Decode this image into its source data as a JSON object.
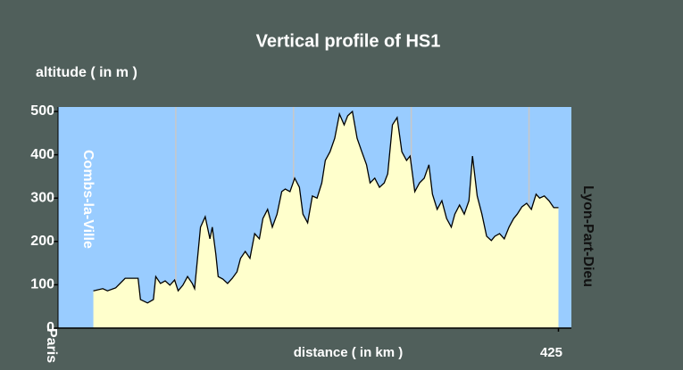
{
  "chart_data": {
    "type": "area",
    "title": "Vertical profile of HS1",
    "y_label": "altitude ( in m )",
    "x_label": "distance ( in km )",
    "annotations": [
      "Paris",
      "Combs-la-Ville",
      "Lyon-Part-Dieu"
    ],
    "xlim": [
      0,
      436
    ],
    "xticks": [
      425
    ],
    "xgrid": [
      100,
      200,
      300,
      400
    ],
    "ylim": [
      0,
      500
    ],
    "yticks": [
      0,
      100,
      200,
      300,
      400,
      500
    ],
    "color": "#ffffcc",
    "line_color": "#000000",
    "x": [
      30,
      38,
      42,
      49,
      57,
      68,
      70,
      76,
      81,
      83,
      87,
      91,
      95,
      99,
      102,
      106,
      110,
      114,
      116,
      121,
      125,
      129,
      131,
      134,
      136,
      140,
      144,
      148,
      152,
      155,
      159,
      163,
      167,
      171,
      174,
      178,
      182,
      186,
      190,
      193,
      197,
      201,
      205,
      208,
      212,
      216,
      220,
      224,
      227,
      231,
      235,
      239,
      243,
      246,
      250,
      254,
      258,
      262,
      265,
      269,
      273,
      277,
      280,
      284,
      288,
      292,
      296,
      299,
      303,
      307,
      311,
      315,
      318,
      322,
      326,
      330,
      334,
      337,
      341,
      345,
      349,
      352,
      356,
      360,
      364,
      368,
      371,
      375,
      379,
      383,
      387,
      390,
      394,
      398,
      402,
      406,
      409,
      413,
      417,
      421,
      425
    ],
    "values": [
      86,
      91,
      86,
      93,
      115,
      115,
      66,
      58,
      66,
      119,
      103,
      109,
      99,
      111,
      86,
      99,
      119,
      103,
      91,
      233,
      257,
      206,
      233,
      171,
      119,
      113,
      103,
      115,
      130,
      161,
      177,
      161,
      218,
      206,
      253,
      274,
      233,
      263,
      315,
      321,
      315,
      346,
      325,
      263,
      243,
      305,
      300,
      335,
      387,
      407,
      438,
      494,
      469,
      490,
      500,
      438,
      407,
      377,
      335,
      346,
      325,
      335,
      356,
      469,
      486,
      407,
      387,
      397,
      315,
      335,
      346,
      377,
      309,
      274,
      294,
      253,
      233,
      263,
      284,
      263,
      294,
      397,
      305,
      263,
      212,
      202,
      212,
      218,
      206,
      233,
      253,
      263,
      280,
      288,
      274,
      309,
      300,
      305,
      294,
      278,
      278
    ]
  }
}
